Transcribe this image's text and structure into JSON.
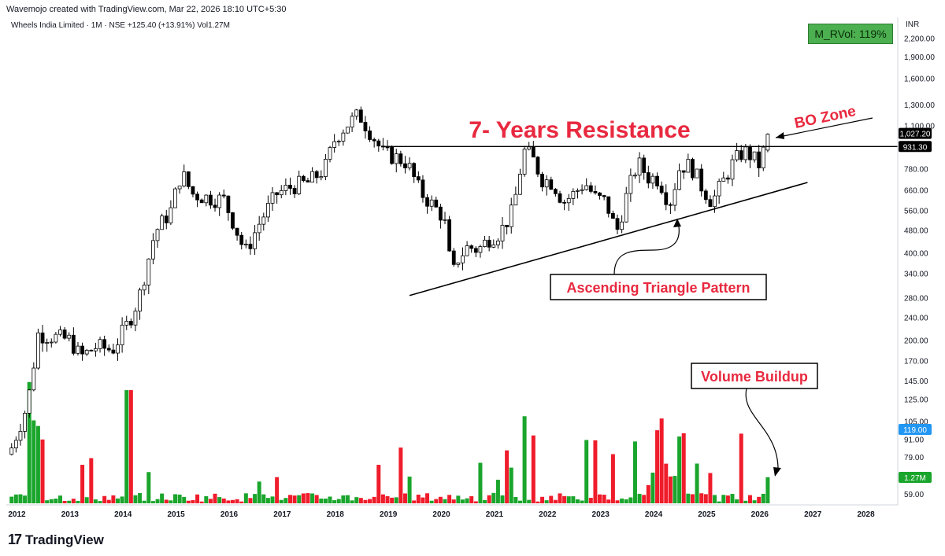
{
  "header": {
    "created_text": "Wavemojo created with TradingView.com, Mar 22, 2026 18:10 UTC+5:30",
    "symbol_text": "Wheels India Limited · 1M · NSE  +125.40 (+13.91%)  Vol1.27M"
  },
  "indicator": {
    "rvol_label": "M_RVol: 119%"
  },
  "logo": {
    "mark": "17",
    "text": "TradingView"
  },
  "colors": {
    "up_candle": "#ffffff",
    "down_candle": "#000000",
    "candle_border": "#000000",
    "vol_up": "#1aa52c",
    "vol_down": "#ef1c2b",
    "annotation_red": "#e8293f",
    "rvol_bg": "#4caf50"
  },
  "chart_data": {
    "type": "candlestick",
    "currency": "INR",
    "scale": "log",
    "ylim": [
      54,
      2600
    ],
    "y_ticks": [
      59,
      79,
      91,
      105,
      125,
      145,
      170,
      200,
      240,
      280,
      340,
      400,
      480,
      560,
      660,
      780,
      1100,
      1300,
      1600,
      1900,
      2200
    ],
    "x_ticks": [
      "2012",
      "2013",
      "2014",
      "2015",
      "2016",
      "2017",
      "2018",
      "2019",
      "2020",
      "2021",
      "2022",
      "2023",
      "2024",
      "2025",
      "2026",
      "2027",
      "2028"
    ],
    "x_range_years": [
      2011.8,
      2028.6
    ],
    "last_price_label": "1,027.20",
    "resistance_label": "931.30",
    "volume_label": "119.00",
    "volume_value_label": "1.27M",
    "candles_anchor_close": [
      [
        2011.9,
        85
      ],
      [
        2012.2,
        120
      ],
      [
        2012.4,
        210
      ],
      [
        2012.7,
        205
      ],
      [
        2013.0,
        200
      ],
      [
        2013.2,
        175
      ],
      [
        2013.5,
        190
      ],
      [
        2013.8,
        185
      ],
      [
        2014.1,
        230
      ],
      [
        2014.3,
        280
      ],
      [
        2014.6,
        470
      ],
      [
        2014.9,
        560
      ],
      [
        2015.1,
        760
      ],
      [
        2015.3,
        640
      ],
      [
        2015.6,
        620
      ],
      [
        2015.9,
        610
      ],
      [
        2016.1,
        500
      ],
      [
        2016.3,
        400
      ],
      [
        2016.6,
        520
      ],
      [
        2016.9,
        640
      ],
      [
        2017.2,
        680
      ],
      [
        2017.5,
        700
      ],
      [
        2017.8,
        780
      ],
      [
        2018.0,
        1000
      ],
      [
        2018.2,
        1100
      ],
      [
        2018.45,
        1200
      ],
      [
        2018.7,
        1020
      ],
      [
        2018.9,
        880
      ],
      [
        2019.1,
        860
      ],
      [
        2019.35,
        820
      ],
      [
        2019.6,
        650
      ],
      [
        2019.85,
        580
      ],
      [
        2020.05,
        530
      ],
      [
        2020.2,
        330
      ],
      [
        2020.3,
        380
      ],
      [
        2020.5,
        420
      ],
      [
        2020.7,
        410
      ],
      [
        2020.9,
        450
      ],
      [
        2021.1,
        470
      ],
      [
        2021.35,
        560
      ],
      [
        2021.55,
        900
      ],
      [
        2021.7,
        860
      ],
      [
        2021.9,
        720
      ],
      [
        2022.1,
        700
      ],
      [
        2022.3,
        600
      ],
      [
        2022.5,
        640
      ],
      [
        2022.7,
        700
      ],
      [
        2022.9,
        620
      ],
      [
        2023.1,
        600
      ],
      [
        2023.3,
        470
      ],
      [
        2023.5,
        640
      ],
      [
        2023.7,
        820
      ],
      [
        2023.9,
        730
      ],
      [
        2024.1,
        720
      ],
      [
        2024.3,
        590
      ],
      [
        2024.5,
        800
      ],
      [
        2024.7,
        800
      ],
      [
        2024.9,
        680
      ],
      [
        2025.1,
        600
      ],
      [
        2025.3,
        700
      ],
      [
        2025.5,
        820
      ],
      [
        2025.7,
        900
      ],
      [
        2025.85,
        860
      ],
      [
        2026.0,
        800
      ],
      [
        2026.15,
        1027
      ]
    ],
    "annotations": {
      "resistance_title": "7- Years Resistance",
      "bo_zone": "BO Zone",
      "triangle_label": "Ascending Triangle Pattern",
      "volume_label": "Volume Buildup"
    },
    "resistance_level": 931.3,
    "resistance_span_years": [
      2018.9,
      2026.2
    ],
    "support_line": [
      [
        2019.4,
        285
      ],
      [
        2026.9,
        700
      ]
    ],
    "volume_scale_max": 100,
    "volume_note": "monthly volume bars, green up / red down"
  }
}
